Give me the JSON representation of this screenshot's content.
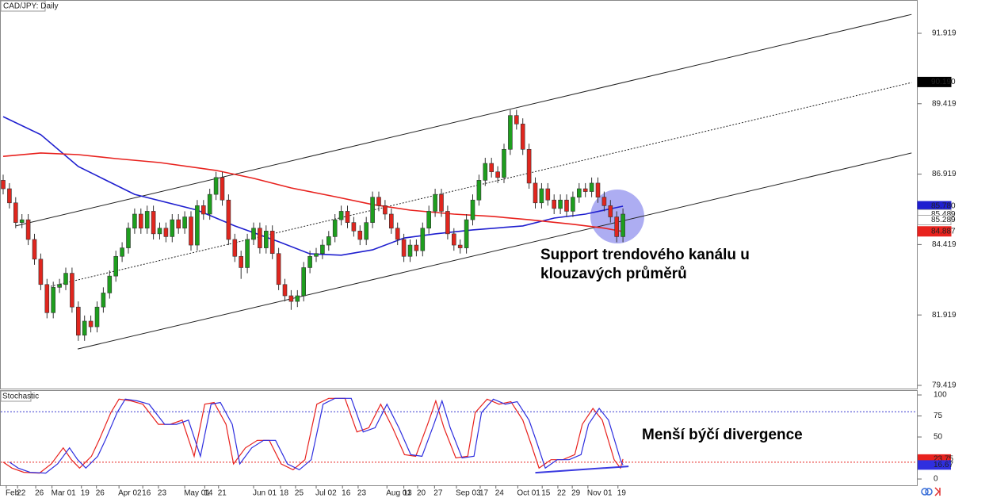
{
  "chart_data": [
    {
      "type": "candlestick",
      "title": "CAD/JPY: Daily",
      "up_color": "#1e9e1e",
      "down_color": "#e0261e",
      "xlim": [
        -0.5,
        146.1
      ],
      "ylim": [
        79.306,
        93.101
      ],
      "yticks": [
        79.419,
        81.919,
        84.419,
        86.919,
        89.419,
        91.919
      ],
      "xticks": [
        {
          "value": 0.5,
          "label": "Feb"
        },
        {
          "value": 2.3,
          "label": "22"
        },
        {
          "value": 5.2,
          "label": "26"
        },
        {
          "value": 7.8,
          "label": "Mar 01"
        },
        {
          "value": 12.5,
          "label": "19"
        },
        {
          "value": 14.9,
          "label": "26"
        },
        {
          "value": 18.5,
          "label": "Apr 02"
        },
        {
          "value": 22.3,
          "label": "16"
        },
        {
          "value": 24.8,
          "label": "23"
        },
        {
          "value": 29,
          "label": "May 01"
        },
        {
          "value": 32.2,
          "label": "14"
        },
        {
          "value": 34.4,
          "label": "21"
        },
        {
          "value": 40,
          "label": "Jun 01"
        },
        {
          "value": 44.3,
          "label": "18"
        },
        {
          "value": 46.7,
          "label": "25"
        },
        {
          "value": 50,
          "label": "Jul 02"
        },
        {
          "value": 54.2,
          "label": "16"
        },
        {
          "value": 56.7,
          "label": "23"
        },
        {
          "value": 61.3,
          "label": "Aug 01"
        },
        {
          "value": 64,
          "label": "13"
        },
        {
          "value": 66.2,
          "label": "20"
        },
        {
          "value": 68.9,
          "label": "27"
        },
        {
          "value": 72.4,
          "label": "Sep 03"
        },
        {
          "value": 76.2,
          "label": "17"
        },
        {
          "value": 78.7,
          "label": "24"
        },
        {
          "value": 82.2,
          "label": "Oct 01"
        },
        {
          "value": 86.1,
          "label": "15"
        },
        {
          "value": 88.6,
          "label": "22"
        },
        {
          "value": 90.9,
          "label": "29"
        },
        {
          "value": 93.4,
          "label": "Nov 01"
        },
        {
          "value": 98.2,
          "label": "19"
        }
      ],
      "candles": [
        [
          86.7,
          86.9,
          86.2,
          86.4
        ],
        [
          86.4,
          86.6,
          85.7,
          85.9
        ],
        [
          85.9,
          86.1,
          85.0,
          85.2
        ],
        [
          85.2,
          85.5,
          85.0,
          85.3
        ],
        [
          85.3,
          85.5,
          84.4,
          84.6
        ],
        [
          84.6,
          84.8,
          83.7,
          83.9
        ],
        [
          83.9,
          84.1,
          82.8,
          83.0
        ],
        [
          83.0,
          83.2,
          81.8,
          82.0
        ],
        [
          82.0,
          83.1,
          81.8,
          82.9
        ],
        [
          82.9,
          83.2,
          82.7,
          83.0
        ],
        [
          83.0,
          83.6,
          82.8,
          83.4
        ],
        [
          83.4,
          83.6,
          82.0,
          82.2
        ],
        [
          82.2,
          82.4,
          81.0,
          81.2
        ],
        [
          81.2,
          81.9,
          81.0,
          81.7
        ],
        [
          81.7,
          81.9,
          81.3,
          81.5
        ],
        [
          81.5,
          82.4,
          81.3,
          82.2
        ],
        [
          82.2,
          82.9,
          82.0,
          82.7
        ],
        [
          82.7,
          83.5,
          82.5,
          83.3
        ],
        [
          83.3,
          84.2,
          83.1,
          84.0
        ],
        [
          84.0,
          84.5,
          83.8,
          84.3
        ],
        [
          84.3,
          85.2,
          84.1,
          85.0
        ],
        [
          85.0,
          85.7,
          84.8,
          85.5
        ],
        [
          85.5,
          85.7,
          84.8,
          85.0
        ],
        [
          85.0,
          85.8,
          84.8,
          85.6
        ],
        [
          85.6,
          85.8,
          84.6,
          84.8
        ],
        [
          84.8,
          85.2,
          84.6,
          85.0
        ],
        [
          85.0,
          85.2,
          84.5,
          84.7
        ],
        [
          84.7,
          85.5,
          84.5,
          85.3
        ],
        [
          85.3,
          85.5,
          84.8,
          85.0
        ],
        [
          85.0,
          85.6,
          84.8,
          85.4
        ],
        [
          85.4,
          85.6,
          84.2,
          84.4
        ],
        [
          84.4,
          86.0,
          84.2,
          85.8
        ],
        [
          85.8,
          86.0,
          85.3,
          85.5
        ],
        [
          85.5,
          86.4,
          85.3,
          86.2
        ],
        [
          86.2,
          87.0,
          86.0,
          86.8
        ],
        [
          86.8,
          87.0,
          85.8,
          86.0
        ],
        [
          86.0,
          86.2,
          84.4,
          84.6
        ],
        [
          84.6,
          84.8,
          83.8,
          84.0
        ],
        [
          84.0,
          84.2,
          83.2,
          83.6
        ],
        [
          83.6,
          84.8,
          83.4,
          84.6
        ],
        [
          84.6,
          85.2,
          84.4,
          85.0
        ],
        [
          85.0,
          85.2,
          84.1,
          84.3
        ],
        [
          84.3,
          85.1,
          84.1,
          84.9
        ],
        [
          84.9,
          85.1,
          83.9,
          84.1
        ],
        [
          84.1,
          84.3,
          82.8,
          83.0
        ],
        [
          83.0,
          83.2,
          82.4,
          82.6
        ],
        [
          82.6,
          82.8,
          82.1,
          82.4
        ],
        [
          82.4,
          82.8,
          82.2,
          82.6
        ],
        [
          82.6,
          83.8,
          82.4,
          83.6
        ],
        [
          83.6,
          84.2,
          83.4,
          84.0
        ],
        [
          84.0,
          84.3,
          83.8,
          84.1
        ],
        [
          84.1,
          84.6,
          83.9,
          84.4
        ],
        [
          84.4,
          84.9,
          84.2,
          84.7
        ],
        [
          84.7,
          85.5,
          84.5,
          85.3
        ],
        [
          85.3,
          85.8,
          85.1,
          85.6
        ],
        [
          85.6,
          85.8,
          85.0,
          85.2
        ],
        [
          85.2,
          85.4,
          84.7,
          84.9
        ],
        [
          84.9,
          85.1,
          84.4,
          84.6
        ],
        [
          84.6,
          85.4,
          84.4,
          85.2
        ],
        [
          85.2,
          86.3,
          85.0,
          86.1
        ],
        [
          86.1,
          86.3,
          85.6,
          85.8
        ],
        [
          85.8,
          86.0,
          85.3,
          85.5
        ],
        [
          85.5,
          85.7,
          84.8,
          85.0
        ],
        [
          85.0,
          85.2,
          84.4,
          84.6
        ],
        [
          84.6,
          84.8,
          83.8,
          84.0
        ],
        [
          84.0,
          84.6,
          83.8,
          84.4
        ],
        [
          84.4,
          84.6,
          84.0,
          84.2
        ],
        [
          84.2,
          85.2,
          84.0,
          85.0
        ],
        [
          85.0,
          85.8,
          84.8,
          85.6
        ],
        [
          85.6,
          86.4,
          85.4,
          86.2
        ],
        [
          86.2,
          86.4,
          85.4,
          85.6
        ],
        [
          85.6,
          85.8,
          84.6,
          84.8
        ],
        [
          84.8,
          85.0,
          84.2,
          84.4
        ],
        [
          84.4,
          84.6,
          84.1,
          84.3
        ],
        [
          84.3,
          85.5,
          84.1,
          85.3
        ],
        [
          85.3,
          86.2,
          85.1,
          86.0
        ],
        [
          86.0,
          86.9,
          85.8,
          86.7
        ],
        [
          86.7,
          87.5,
          86.5,
          87.3
        ],
        [
          87.3,
          87.5,
          86.8,
          87.0
        ],
        [
          87.0,
          87.2,
          86.6,
          86.8
        ],
        [
          86.8,
          88.0,
          86.6,
          87.8
        ],
        [
          87.8,
          89.2,
          87.6,
          89.0
        ],
        [
          89.0,
          89.2,
          88.5,
          88.7
        ],
        [
          88.7,
          88.9,
          87.6,
          87.8
        ],
        [
          87.8,
          88.0,
          86.4,
          86.6
        ],
        [
          86.6,
          86.8,
          85.7,
          85.9
        ],
        [
          85.9,
          86.6,
          85.7,
          86.4
        ],
        [
          86.4,
          86.6,
          85.8,
          86.0
        ],
        [
          86.0,
          86.2,
          85.5,
          85.7
        ],
        [
          85.7,
          86.2,
          85.5,
          86.0
        ],
        [
          86.0,
          86.2,
          85.4,
          85.6
        ],
        [
          85.6,
          86.3,
          85.4,
          86.1
        ],
        [
          86.1,
          86.6,
          85.9,
          86.4
        ],
        [
          86.4,
          86.6,
          86.1,
          86.3
        ],
        [
          86.3,
          86.8,
          86.1,
          86.6
        ],
        [
          86.6,
          86.8,
          85.9,
          86.1
        ],
        [
          86.1,
          86.3,
          85.6,
          85.8
        ],
        [
          85.8,
          86.0,
          85.2,
          85.4
        ],
        [
          85.4,
          85.6,
          84.5,
          84.7
        ],
        [
          84.7,
          85.7,
          84.5,
          85.5
        ]
      ],
      "series": [
        {
          "color": "#1f1fcf",
          "x": [
            0,
            6,
            12,
            21,
            31,
            37,
            44,
            49,
            54,
            59,
            64,
            69,
            75,
            83,
            88,
            93,
            99
          ],
          "values": [
            88.96,
            88.32,
            87.19,
            86.2,
            85.64,
            85.08,
            84.52,
            84.09,
            84.04,
            84.23,
            84.65,
            84.8,
            84.94,
            85.08,
            85.36,
            85.5,
            85.78
          ]
        },
        {
          "color": "#e8221e",
          "x": [
            0,
            6,
            12,
            18,
            25,
            34,
            40,
            46,
            53,
            59,
            65,
            72,
            78,
            84,
            91,
            96,
            99
          ],
          "values": [
            87.55,
            87.67,
            87.61,
            87.47,
            87.33,
            87.05,
            86.77,
            86.43,
            86.12,
            85.84,
            85.64,
            85.5,
            85.42,
            85.3,
            85.14,
            85.0,
            84.88
          ]
        }
      ],
      "trend_lines": [
        {
          "x": [
            2.0,
            145.1
          ],
          "values": [
            85.08,
            92.59
          ],
          "dash": false
        },
        {
          "x": [
            7.1,
            145.1
          ],
          "values": [
            82.91,
            90.17
          ],
          "dash": true
        },
        {
          "x": [
            11.9,
            145.1
          ],
          "values": [
            80.71,
            87.67
          ],
          "dash": false
        }
      ],
      "price_labels": [
        {
          "value": 90.19,
          "label": "90.190",
          "color": "#000000"
        },
        {
          "value": 85.78,
          "label": "85.780",
          "color": "#1f1fcf"
        },
        {
          "value": 85.489,
          "label": "85.489",
          "color": "#ffffff"
        },
        {
          "value": 85.289,
          "label": "85.289",
          "color": "#ffffff"
        },
        {
          "value": 84.887,
          "label": "84.887",
          "color": "#e8221e"
        }
      ],
      "annotation": [
        "Support trendového kanálu u",
        "klouzavých průměrů"
      ]
    },
    {
      "type": "line",
      "title": "Stochastic",
      "ylim": [
        -7.5,
        105.7
      ],
      "yticks": [
        0,
        25,
        50,
        75,
        100
      ],
      "levels": [
        {
          "value": 80,
          "color": "#3a3acf"
        },
        {
          "value": 20,
          "color": "#e8221e"
        }
      ],
      "series": [
        {
          "color": "#e8221e",
          "x": [
            0,
            1.4,
            3.3,
            5.8,
            7.7,
            9.6,
            10.9,
            12.2,
            14.1,
            15.3,
            17.2,
            18.5,
            20.4,
            22.3,
            24.8,
            26.7,
            28.6,
            30.5,
            32.2,
            33.7,
            35.6,
            36.8,
            38.7,
            40.6,
            42.5,
            44.4,
            46.3,
            48.2,
            50.1,
            52.0,
            54.6,
            56.5,
            58.4,
            60.3,
            62.2,
            64.1,
            65.9,
            67.8,
            69.1,
            70.4,
            72.3,
            74.2,
            75.4,
            77.3,
            79.2,
            81.1,
            83.0,
            84.3,
            85.6,
            87.5,
            89.4,
            91.3,
            92.5,
            94.2,
            95.7,
            97.6,
            98.6,
            99
          ],
          "values": [
            20,
            13,
            8,
            7,
            18,
            37,
            23,
            13,
            27,
            46,
            79,
            95,
            93,
            89,
            65,
            65,
            70,
            27,
            89,
            91,
            65,
            18,
            37,
            46,
            46,
            18,
            11,
            23,
            89,
            96,
            96,
            56,
            61,
            89,
            61,
            29,
            27,
            65,
            93,
            61,
            25,
            27,
            79,
            95,
            89,
            92,
            70,
            42,
            13,
            23,
            23,
            29,
            65,
            84,
            70,
            23,
            13,
            23.75
          ]
        },
        {
          "color": "#2f2fdf",
          "x": [
            1,
            2.4,
            4.3,
            6.8,
            8.7,
            10.6,
            11.9,
            13.2,
            15.1,
            16.3,
            18.2,
            19.5,
            21.4,
            23.3,
            25.8,
            27.7,
            29.6,
            31.5,
            33.2,
            34.7,
            36.6,
            37.8,
            39.7,
            41.6,
            43.5,
            45.4,
            47.3,
            49.2,
            51.1,
            53.0,
            55.6,
            57.5,
            59.4,
            61.3,
            63.2,
            65.1,
            66.9,
            68.8,
            70.1,
            71.4,
            73.3,
            75.2,
            76.4,
            78.3,
            80.2,
            82.1,
            84.0,
            85.3,
            86.6,
            88.5,
            90.4,
            92.3,
            93.5,
            95.2,
            96.7,
            98.6,
            99
          ],
          "values": [
            20,
            13,
            8,
            7,
            18,
            37,
            23,
            13,
            27,
            46,
            79,
            95,
            93,
            89,
            65,
            65,
            70,
            27,
            89,
            91,
            65,
            18,
            37,
            46,
            46,
            18,
            11,
            23,
            89,
            96,
            96,
            56,
            61,
            89,
            61,
            29,
            27,
            65,
            93,
            61,
            25,
            27,
            79,
            95,
            89,
            92,
            70,
            42,
            13,
            23,
            23,
            29,
            65,
            84,
            70,
            23,
            16.67
          ]
        }
      ],
      "divergence_line": {
        "x": [
          85,
          99.9
        ],
        "values": [
          7.5,
          15
        ]
      },
      "annotation": "Menší býčí divergence"
    }
  ]
}
